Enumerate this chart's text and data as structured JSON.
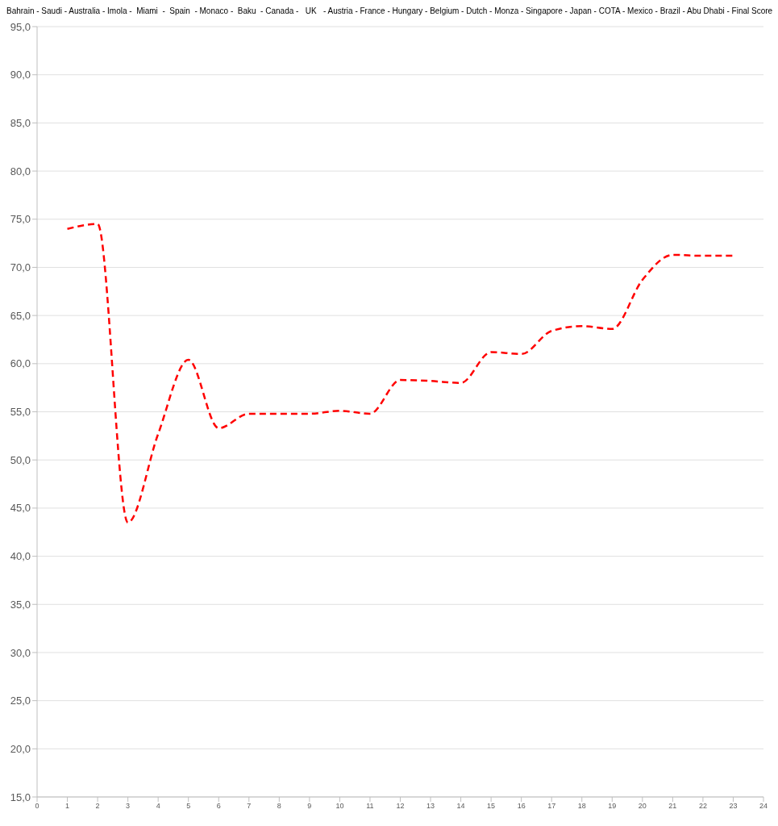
{
  "chart_data": {
    "type": "line",
    "title": "Bahrain - Saudi - Australia - Imola -  Miami  -  Spain  - Monaco -  Baku  - Canada -   UK   - Austria - France - Hungary - Belgium - Dutch - Monza - Singapore - Japan - COTA - Mexico - Brazil - Abu Dhabi - Final Score",
    "x": [
      1,
      2,
      3,
      4,
      5,
      6,
      7,
      8,
      9,
      10,
      11,
      12,
      13,
      14,
      15,
      16,
      17,
      18,
      19,
      20,
      21,
      22,
      23
    ],
    "series": [
      {
        "color": "#ff0000",
        "values": [
          74.0,
          74.5,
          43.5,
          52.7,
          60.4,
          53.3,
          54.8,
          54.8,
          54.8,
          55.1,
          54.8,
          58.3,
          58.2,
          58.0,
          61.2,
          61.0,
          63.4,
          63.9,
          63.6,
          68.7,
          71.3,
          71.2,
          71.2
        ]
      }
    ],
    "xlim": [
      0,
      24
    ],
    "xticks": [
      0,
      1,
      2,
      3,
      4,
      5,
      6,
      7,
      8,
      9,
      10,
      11,
      12,
      13,
      14,
      15,
      16,
      17,
      18,
      19,
      20,
      21,
      22,
      23,
      24
    ],
    "ylim": [
      15,
      95
    ],
    "yticks": [
      {
        "value": 15,
        "label": "15,0"
      },
      {
        "value": 20,
        "label": "20,0"
      },
      {
        "value": 25,
        "label": "25,0"
      },
      {
        "value": 30,
        "label": "30,0"
      },
      {
        "value": 35,
        "label": "35,0"
      },
      {
        "value": 40,
        "label": "40,0"
      },
      {
        "value": 45,
        "label": "45,0"
      },
      {
        "value": 50,
        "label": "50,0"
      },
      {
        "value": 55,
        "label": "55,0"
      },
      {
        "value": 60,
        "label": "60,0"
      },
      {
        "value": 65,
        "label": "65,0"
      },
      {
        "value": 70,
        "label": "70,0"
      },
      {
        "value": 75,
        "label": "75,0"
      },
      {
        "value": 80,
        "label": "80,0"
      },
      {
        "value": 85,
        "label": "85,0"
      },
      {
        "value": 90,
        "label": "90,0"
      },
      {
        "value": 95,
        "label": "95,0"
      }
    ],
    "grid": "y",
    "legend": false,
    "marker": "none",
    "line_style": "dashed"
  }
}
